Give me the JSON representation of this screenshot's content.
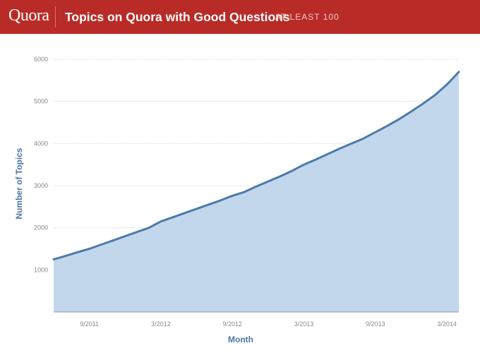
{
  "header": {
    "logo": "Quora",
    "title": "Topics on Quora with Good Questions",
    "subtitle": "AT LEAST 100"
  },
  "colors": {
    "header_bg": "#b92b27",
    "line": "#4d7aa8",
    "area_fill": "#c2d7ec",
    "grid": "#d9d9d9",
    "axis_text": "#888888",
    "label_text": "#4a75a3"
  },
  "chart_data": {
    "type": "area",
    "title": "Topics on Quora with Good Questions",
    "subtitle": "AT LEAST 100",
    "xlabel": "Month",
    "ylabel": "Number of Topics",
    "ylim": [
      0,
      6000
    ],
    "xlim": [
      "2011-06",
      "2014-04"
    ],
    "grid": true,
    "yticks": [
      1000,
      2000,
      3000,
      4000,
      5000,
      6000
    ],
    "xtick_labels": [
      "9/2011",
      "3/2012",
      "9/2012",
      "3/2013",
      "9/2013",
      "3/2014"
    ],
    "x": [
      "2011-06",
      "2011-07",
      "2011-08",
      "2011-09",
      "2011-10",
      "2011-11",
      "2011-12",
      "2012-01",
      "2012-02",
      "2012-03",
      "2012-04",
      "2012-05",
      "2012-06",
      "2012-07",
      "2012-08",
      "2012-09",
      "2012-10",
      "2012-11",
      "2012-12",
      "2013-01",
      "2013-02",
      "2013-03",
      "2013-04",
      "2013-05",
      "2013-06",
      "2013-07",
      "2013-08",
      "2013-09",
      "2013-10",
      "2013-11",
      "2013-12",
      "2014-01",
      "2014-02",
      "2014-03",
      "2014-04"
    ],
    "series": [
      {
        "values": [
          1250,
          1330,
          1420,
          1500,
          1600,
          1700,
          1800,
          1900,
          2000,
          2150,
          2250,
          2350,
          2450,
          2550,
          2650,
          2760,
          2850,
          2980,
          3100,
          3220,
          3350,
          3500,
          3620,
          3750,
          3880,
          4000,
          4120,
          4270,
          4420,
          4580,
          4760,
          4950,
          5150,
          5400,
          5700
        ]
      }
    ]
  }
}
